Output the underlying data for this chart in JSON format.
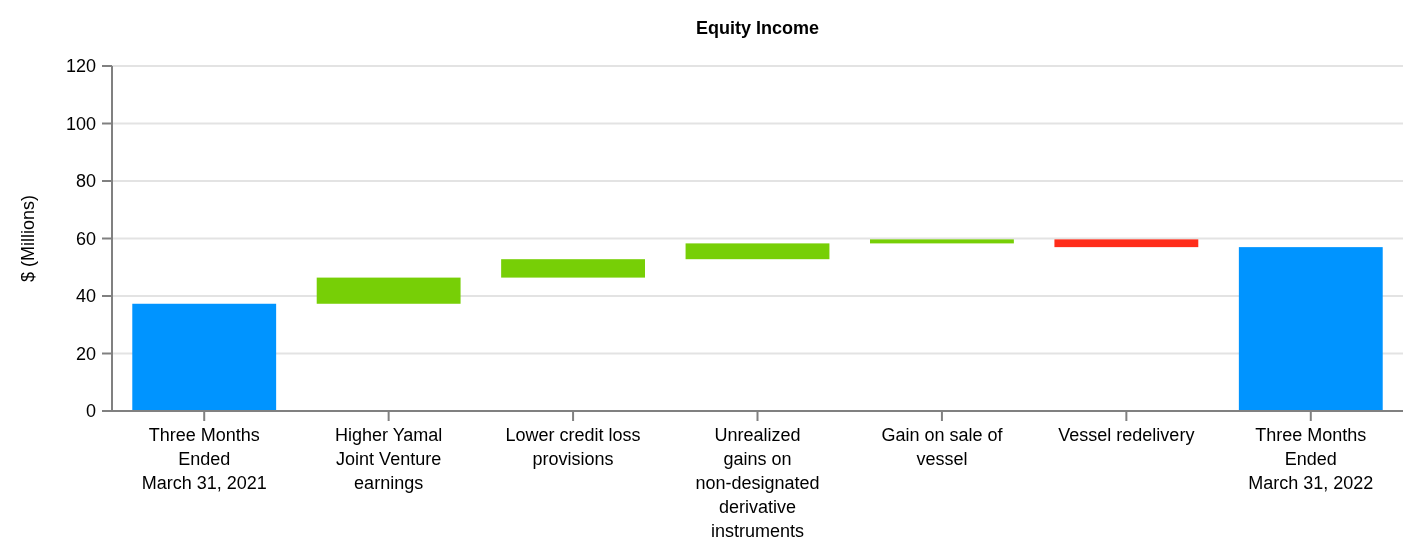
{
  "chart_data": {
    "type": "bar",
    "title": "Equity Income",
    "ylabel": "$ (Millions)",
    "categories": [
      "Three Months\nEnded\nMarch 31, 2021",
      "Higher Yamal\nJoint Venture\nearnings",
      "Lower credit loss\nprovisions",
      "Unrealized\ngains on\nnon-designated\nderivative\ninstruments",
      "Gain on sale of\nvessel",
      "Vessel redelivery",
      "Three Months\nEnded\nMarch 31, 2022"
    ],
    "values": [
      37.3,
      9.1,
      6.4,
      5.5,
      1.4,
      -2.7,
      57.0
    ],
    "base": [
      0,
      37.3,
      46.4,
      52.8,
      58.3,
      59.7,
      0
    ],
    "colors": [
      "#0094ff",
      "#77cf06",
      "#77cf06",
      "#77cf06",
      "#77cf06",
      "#ff2d1a",
      "#0094ff"
    ],
    "ylim": [
      0,
      120
    ],
    "yticks": [
      0,
      20,
      40,
      60,
      80,
      100,
      120
    ],
    "grid": "y"
  }
}
